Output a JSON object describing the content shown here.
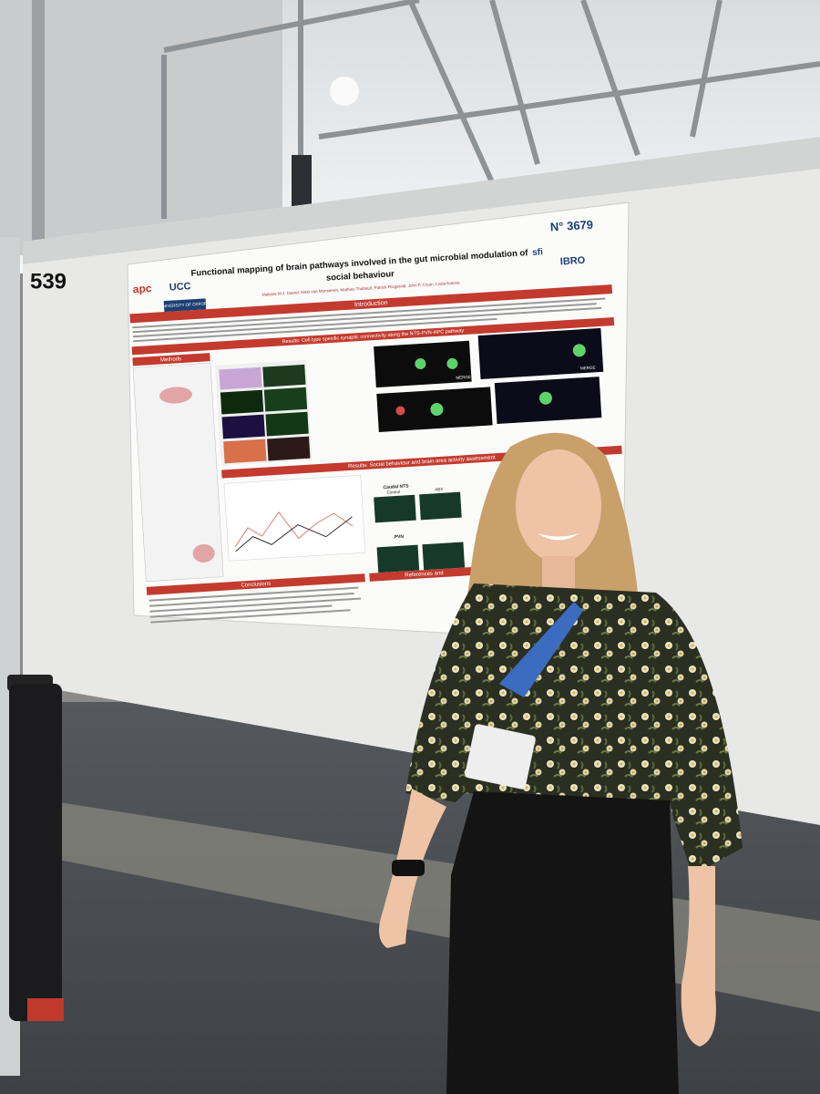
{
  "board_number": "539",
  "poster": {
    "number": "N° 3679",
    "title_lines": [
      "Functional mapping of brain pathways involved in the gut microbial modulation of",
      "social behaviour"
    ],
    "authors": "Melanie M.J. Doerel, Nikki van Munsteren, Mathieu Thabault, Patrick Fitzgerald, John F. Cryan, Linda Katona",
    "logos": [
      "apc",
      "UCC",
      "UNIVERSITY OF OXFORD",
      "sfi",
      "IBRO"
    ],
    "sections": {
      "introduction": "Introduction",
      "methods": "Methods",
      "results_1": "Results: Cell type specific synaptic connectivity along the NTS-PVN-HPC pathway",
      "results_2": "Results: Social behaviour and brain area activity assessment",
      "conclusions": "Conclusions",
      "references": "References and"
    },
    "panel_labels": [
      "MERGE",
      "MERGE",
      "Caudal NTS",
      "PVN",
      "Control",
      "ABX"
    ]
  }
}
